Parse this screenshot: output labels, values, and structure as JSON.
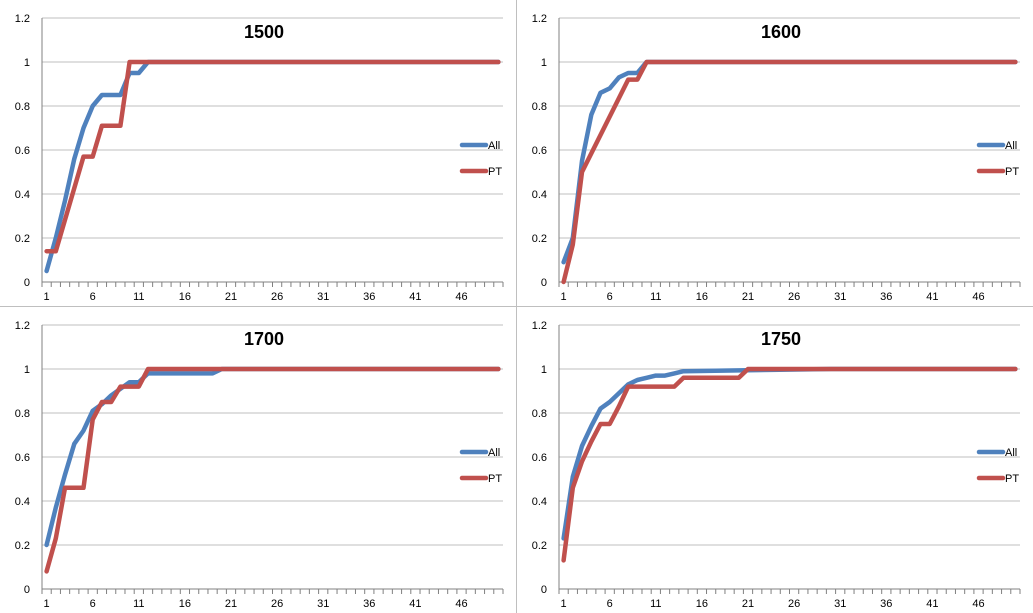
{
  "colors": {
    "All": "#4f81bd",
    "PT": "#c0504d",
    "grid": "#bfbfbf",
    "axis": "#808080"
  },
  "chart_data": [
    {
      "type": "line",
      "title": "1500",
      "ylim": [
        0,
        1.2
      ],
      "yticks": [
        "0",
        "0.2",
        "0.4",
        "0.6",
        "0.8",
        "1",
        "1.2"
      ],
      "xticks": [
        "1",
        "6",
        "11",
        "16",
        "21",
        "26",
        "31",
        "36",
        "41",
        "46"
      ],
      "x_count": 50,
      "legend": "right",
      "series": [
        {
          "name": "All",
          "points": [
            [
              1,
              0.05
            ],
            [
              2,
              0.2
            ],
            [
              3,
              0.37
            ],
            [
              4,
              0.56
            ],
            [
              5,
              0.7
            ],
            [
              6,
              0.8
            ],
            [
              7,
              0.85
            ],
            [
              9,
              0.85
            ],
            [
              10,
              0.95
            ],
            [
              11,
              0.95
            ],
            [
              12,
              1.0
            ],
            [
              50,
              1.0
            ]
          ]
        },
        {
          "name": "PT",
          "points": [
            [
              1,
              0.14
            ],
            [
              2,
              0.14
            ],
            [
              5,
              0.57
            ],
            [
              6,
              0.57
            ],
            [
              7,
              0.71
            ],
            [
              9,
              0.71
            ],
            [
              10,
              1.0
            ],
            [
              50,
              1.0
            ]
          ]
        }
      ]
    },
    {
      "type": "line",
      "title": "1600",
      "ylim": [
        0,
        1.2
      ],
      "yticks": [
        "0",
        "0.2",
        "0.4",
        "0.6",
        "0.8",
        "1",
        "1.2"
      ],
      "xticks": [
        "1",
        "6",
        "11",
        "16",
        "21",
        "26",
        "31",
        "36",
        "41",
        "46"
      ],
      "x_count": 50,
      "legend": "right",
      "series": [
        {
          "name": "All",
          "points": [
            [
              1,
              0.09
            ],
            [
              2,
              0.2
            ],
            [
              3,
              0.55
            ],
            [
              4,
              0.76
            ],
            [
              5,
              0.86
            ],
            [
              6,
              0.88
            ],
            [
              7,
              0.93
            ],
            [
              8,
              0.95
            ],
            [
              9,
              0.95
            ],
            [
              10,
              1.0
            ],
            [
              50,
              1.0
            ]
          ]
        },
        {
          "name": "PT",
          "points": [
            [
              1,
              0.0
            ],
            [
              2,
              0.17
            ],
            [
              3,
              0.5
            ],
            [
              8,
              0.92
            ],
            [
              9,
              0.92
            ],
            [
              10,
              1.0
            ],
            [
              50,
              1.0
            ]
          ]
        }
      ]
    },
    {
      "type": "line",
      "title": "1700",
      "ylim": [
        0,
        1.2
      ],
      "yticks": [
        "0",
        "0.2",
        "0.4",
        "0.6",
        "0.8",
        "1",
        "1.2"
      ],
      "xticks": [
        "1",
        "6",
        "11",
        "16",
        "21",
        "26",
        "31",
        "36",
        "41",
        "46"
      ],
      "x_count": 50,
      "legend": "right",
      "series": [
        {
          "name": "All",
          "points": [
            [
              1,
              0.2
            ],
            [
              2,
              0.37
            ],
            [
              3,
              0.52
            ],
            [
              4,
              0.66
            ],
            [
              5,
              0.72
            ],
            [
              6,
              0.81
            ],
            [
              7,
              0.84
            ],
            [
              8,
              0.88
            ],
            [
              9,
              0.91
            ],
            [
              10,
              0.94
            ],
            [
              11,
              0.94
            ],
            [
              12,
              0.98
            ],
            [
              19,
              0.98
            ],
            [
              20,
              1.0
            ],
            [
              50,
              1.0
            ]
          ]
        },
        {
          "name": "PT",
          "points": [
            [
              1,
              0.08
            ],
            [
              2,
              0.23
            ],
            [
              3,
              0.46
            ],
            [
              5,
              0.46
            ],
            [
              6,
              0.77
            ],
            [
              7,
              0.85
            ],
            [
              8,
              0.85
            ],
            [
              9,
              0.92
            ],
            [
              11,
              0.92
            ],
            [
              12,
              1.0
            ],
            [
              50,
              1.0
            ]
          ]
        }
      ]
    },
    {
      "type": "line",
      "title": "1750",
      "ylim": [
        0,
        1.2
      ],
      "yticks": [
        "0",
        "0.2",
        "0.4",
        "0.6",
        "0.8",
        "1",
        "1.2"
      ],
      "xticks": [
        "1",
        "6",
        "11",
        "16",
        "21",
        "26",
        "31",
        "36",
        "41",
        "46"
      ],
      "x_count": 50,
      "legend": "right",
      "series": [
        {
          "name": "All",
          "points": [
            [
              1,
              0.23
            ],
            [
              2,
              0.51
            ],
            [
              3,
              0.65
            ],
            [
              4,
              0.74
            ],
            [
              5,
              0.82
            ],
            [
              6,
              0.85
            ],
            [
              7,
              0.89
            ],
            [
              8,
              0.93
            ],
            [
              9,
              0.95
            ],
            [
              10,
              0.96
            ],
            [
              11,
              0.97
            ],
            [
              12,
              0.97
            ],
            [
              13,
              0.98
            ],
            [
              14,
              0.99
            ],
            [
              30,
              1.0
            ],
            [
              50,
              1.0
            ]
          ]
        },
        {
          "name": "PT",
          "points": [
            [
              1,
              0.13
            ],
            [
              2,
              0.46
            ],
            [
              3,
              0.58
            ],
            [
              4,
              0.67
            ],
            [
              5,
              0.75
            ],
            [
              6,
              0.75
            ],
            [
              7,
              0.83
            ],
            [
              8,
              0.92
            ],
            [
              13,
              0.92
            ],
            [
              14,
              0.96
            ],
            [
              20,
              0.96
            ],
            [
              21,
              1.0
            ],
            [
              50,
              1.0
            ]
          ]
        }
      ]
    }
  ]
}
